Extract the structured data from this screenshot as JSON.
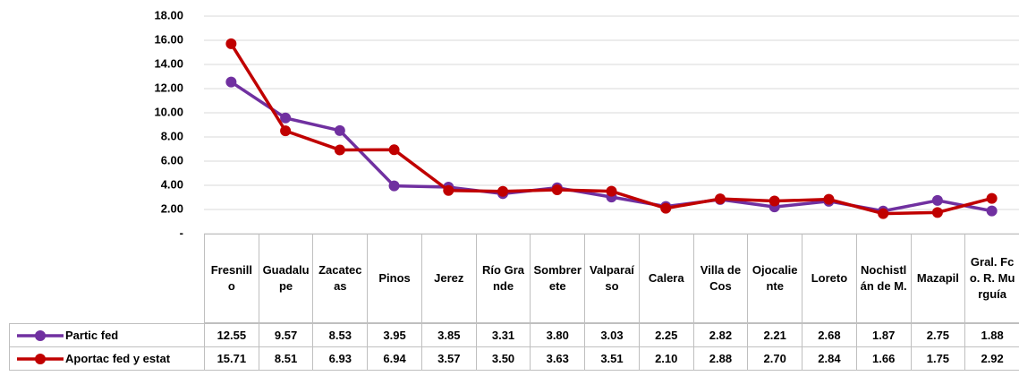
{
  "chart_data": {
    "type": "line",
    "categories": [
      "Fresnillo",
      "Guadalupe",
      "Zacatecas",
      "Pinos",
      "Jerez",
      "Río Grande",
      "Sombrerete",
      "Valparaíso",
      "Calera",
      "Villa de Cos",
      "Ojocaliente",
      "Loreto",
      "Nochistlán de M.",
      "Mazapil",
      "Gral. Fco. R. Murguía"
    ],
    "series": [
      {
        "name": "Partic fed",
        "color": "#7030a0",
        "values": [
          12.55,
          9.57,
          8.53,
          3.95,
          3.85,
          3.31,
          3.8,
          3.03,
          2.25,
          2.82,
          2.21,
          2.68,
          1.87,
          2.75,
          1.88
        ],
        "value_labels": [
          "12.55",
          "9.57",
          "8.53",
          "3.95",
          "3.85",
          "3.31",
          "3.80",
          "3.03",
          "2.25",
          "2.82",
          "2.21",
          "2.68",
          "1.87",
          "2.75",
          "1.88"
        ]
      },
      {
        "name": "Aportac fed y estat",
        "color": "#c00000",
        "values": [
          15.71,
          8.51,
          6.93,
          6.94,
          3.57,
          3.5,
          3.63,
          3.51,
          2.1,
          2.88,
          2.7,
          2.84,
          1.66,
          1.75,
          2.92
        ],
        "value_labels": [
          "15.71",
          "8.51",
          "6.93",
          "6.94",
          "3.57",
          "3.50",
          "3.63",
          "3.51",
          "2.10",
          "2.88",
          "2.70",
          "2.84",
          "1.66",
          "1.75",
          "2.92"
        ]
      }
    ],
    "ylim": [
      0,
      18
    ],
    "yticks": [
      {
        "value": 0,
        "label": "-"
      },
      {
        "value": 2,
        "label": "2.00"
      },
      {
        "value": 4,
        "label": "4.00"
      },
      {
        "value": 6,
        "label": "6.00"
      },
      {
        "value": 8,
        "label": "8.00"
      },
      {
        "value": 10,
        "label": "10.00"
      },
      {
        "value": 12,
        "label": "12.00"
      },
      {
        "value": 14,
        "label": "14.00"
      },
      {
        "value": 16,
        "label": "16.00"
      },
      {
        "value": 18,
        "label": "18.00"
      }
    ],
    "grid": true
  }
}
